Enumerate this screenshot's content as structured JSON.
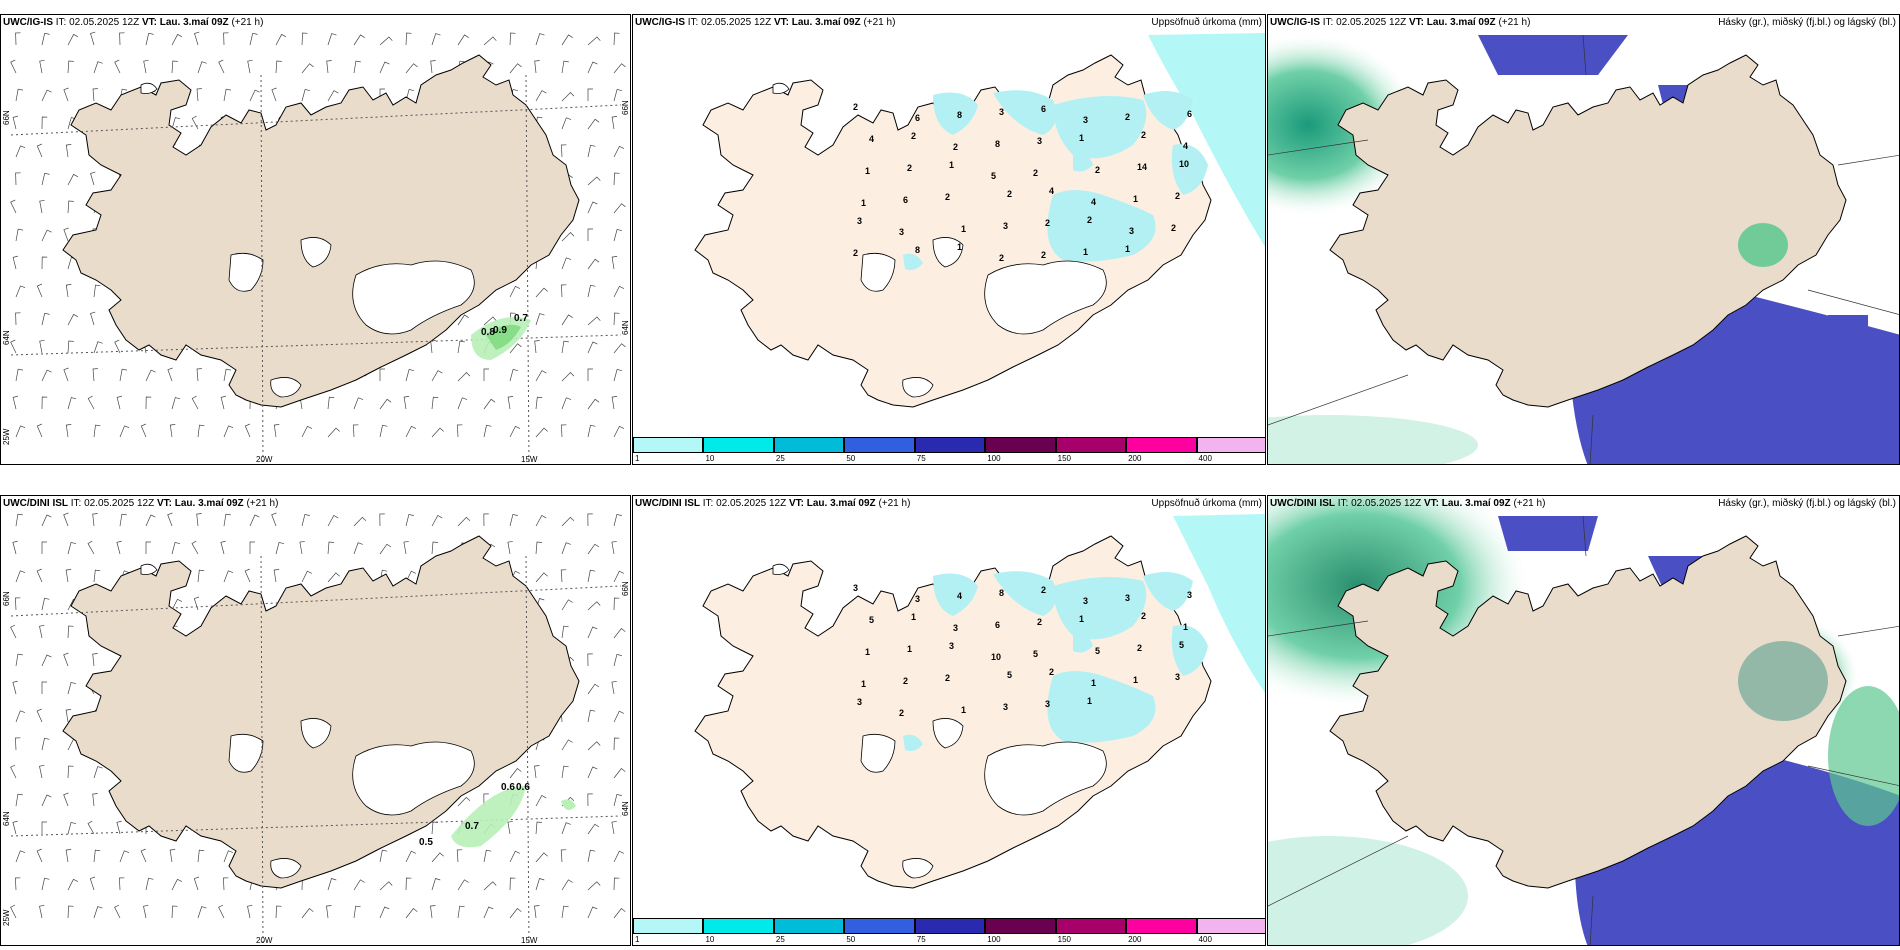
{
  "panels": {
    "top_wind": {
      "model": "UWC/IG-IS",
      "it": "IT: 02.05.2025 12Z",
      "vt": "VT: Lau. 3.maí 09Z",
      "lead": "(+21 h)"
    },
    "top_precip": {
      "model": "UWC/IG-IS",
      "it": "IT: 02.05.2025 12Z",
      "vt": "VT: Lau. 3.maí 09Z",
      "lead": "(+21 h)",
      "title": "Uppsöfnuð úrkoma (mm)"
    },
    "top_cloud": {
      "model": "UWC/IG-IS",
      "it": "IT: 02.05.2025 12Z",
      "vt": "VT: Lau. 3.maí 09Z",
      "lead": "(+21 h)",
      "title": "Hásky (gr.), miðský (fj.bl.) og lágský (bl.)"
    },
    "bot_wind": {
      "model": "UWC/DINI ISL",
      "it": "IT: 02.05.2025 12Z",
      "vt": "VT: Lau. 3.maí 09Z",
      "lead": "(+21 h)"
    },
    "bot_precip": {
      "model": "UWC/DINI ISL",
      "it": "IT: 02.05.2025 12Z",
      "vt": "VT: Lau. 3.maí 09Z",
      "lead": "(+21 h)",
      "title": "Uppsöfnuð úrkoma (mm)"
    },
    "bot_cloud": {
      "model": "UWC/DINI ISL",
      "it": "IT: 02.05.2025 12Z",
      "vt": "VT: Lau. 3.maí 09Z",
      "lead": "(+21 h)",
      "title": "Hásky (gr.), miðský (fj.bl.) og lágský (bl.)"
    }
  },
  "axes": {
    "lon": [
      "20W",
      "15W"
    ],
    "lat": [
      "66N",
      "64N"
    ],
    "lat_left": [
      "66N",
      "64N",
      "25W"
    ]
  },
  "top_wind_values": [
    "0.7",
    "0.8",
    "0.9"
  ],
  "bot_wind_values": [
    "0.6",
    "0.6",
    "0.7",
    "0.5"
  ],
  "top_precip_values": [
    "2",
    "6",
    "8",
    "3",
    "6",
    "3",
    "2",
    "6",
    "4",
    "2",
    "2",
    "8",
    "3",
    "1",
    "2",
    "4",
    "1",
    "2",
    "1",
    "5",
    "2",
    "2",
    "14",
    "10",
    "1",
    "6",
    "2",
    "2",
    "4",
    "4",
    "1",
    "2",
    "3",
    "3",
    "1",
    "3",
    "2",
    "2",
    "3",
    "2",
    "2",
    "8",
    "1",
    "2",
    "2",
    "1",
    "1"
  ],
  "bot_precip_values": [
    "3",
    "3",
    "4",
    "8",
    "2",
    "3",
    "3",
    "3",
    "5",
    "1",
    "3",
    "6",
    "2",
    "1",
    "2",
    "1",
    "1",
    "1",
    "3",
    "10",
    "5",
    "5",
    "2",
    "5",
    "1",
    "2",
    "2",
    "5",
    "2",
    "1",
    "1",
    "3",
    "3",
    "2",
    "1",
    "3",
    "3",
    "1"
  ],
  "colorbar": {
    "colors": [
      "#b3f7f7",
      "#00eaea",
      "#00bcd8",
      "#3060e0",
      "#2a2ab0",
      "#6a0050",
      "#a8006a",
      "#ff00a0",
      "#f3b3ee"
    ],
    "ticks": [
      "1",
      "10",
      "25",
      "50",
      "75",
      "100",
      "150",
      "200",
      "400"
    ]
  }
}
